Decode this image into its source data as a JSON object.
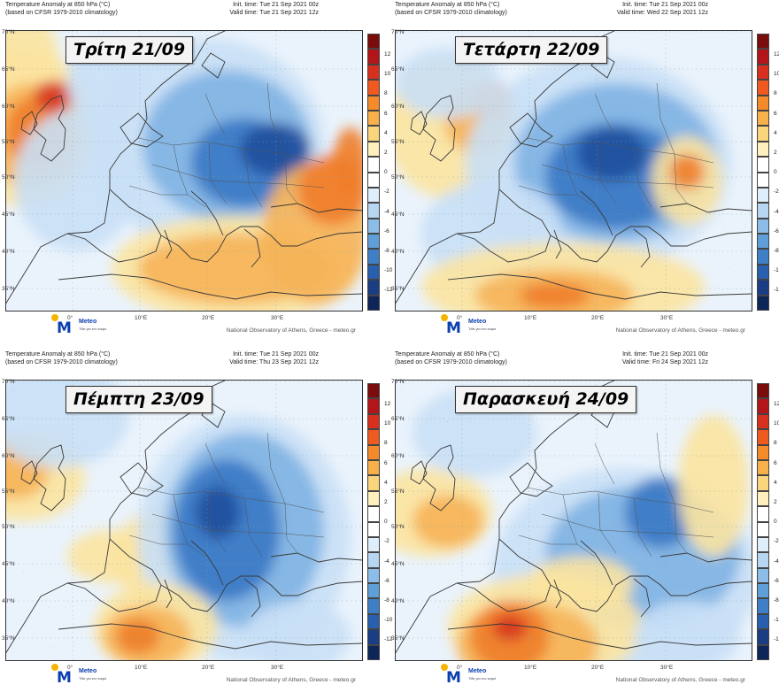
{
  "header": {
    "title_line1": "Temperature Anomaly at 850 hPa (°C)",
    "title_line2": "(based on CFSR 1979-2010 climatology)",
    "init_time": "Init. time: Tue 21 Sep 2021 00z"
  },
  "footer": "National Observatory of Athens, Greece - meteo.gr",
  "logo": {
    "name": "Meteo",
    "subtitle": "Τίθε για τον καιρό"
  },
  "lat_labels": [
    "70°N",
    "65°N",
    "60°N",
    "55°N",
    "50°N",
    "45°N",
    "40°N",
    "35°N"
  ],
  "lon_labels": [
    "0°",
    "10°E",
    "20°E",
    "30°E"
  ],
  "colorbar": {
    "ticks": [
      "12",
      "10",
      "8",
      "6",
      "4",
      "2",
      "0",
      "-2",
      "-4",
      "-6",
      "-8",
      "-10",
      "-12"
    ],
    "colors": [
      "#7b0c0c",
      "#b2161a",
      "#d8301f",
      "#ef5a20",
      "#f58a2b",
      "#f8b04a",
      "#fbd57c",
      "#fdf0bc",
      "#ffffff",
      "#ffffff",
      "#deeefb",
      "#b6d6f2",
      "#8cbde8",
      "#5f9fd9",
      "#3f7fc8",
      "#285fae",
      "#1a3d84",
      "#0e2559",
      "#ffffff",
      "#ffffff",
      "#ffffff",
      "#ffffff"
    ]
  },
  "panels": [
    {
      "day": "Τρίτη 21/09",
      "valid_time": "Valid time: Tue 21 Sep 2021 12z"
    },
    {
      "day": "Τετάρτη 22/09",
      "valid_time": "Valid time: Wed 22 Sep 2021 12z"
    },
    {
      "day": "Πέμπτη 23/09",
      "valid_time": "Valid time: Thu 23 Sep 2021 12z"
    },
    {
      "day": "Παρασκευή 24/09",
      "valid_time": "Valid time: Fri 24 Sep 2021 12z"
    }
  ],
  "colors": {
    "warm": "#f39a3a",
    "cold": "#3f7fc8",
    "land_outline": "#3a3a3a"
  }
}
